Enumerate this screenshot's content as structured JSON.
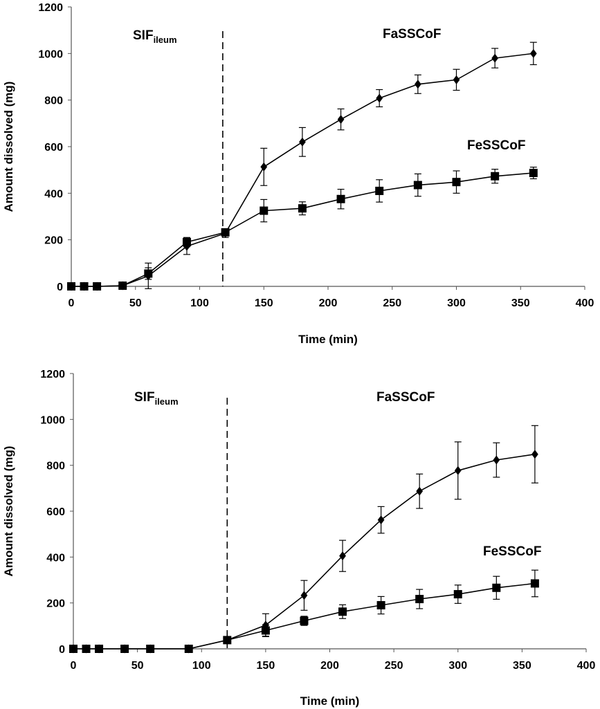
{
  "chart_data": [
    {
      "type": "line",
      "xlabel": "Time (min)",
      "ylabel": "Amount dissolved (mg)",
      "xlim": [
        0,
        400
      ],
      "ylim": [
        0,
        1200
      ],
      "xticks": [
        "0",
        "50",
        "100",
        "150",
        "200",
        "250",
        "300",
        "350",
        "400"
      ],
      "yticks": [
        "0",
        "200",
        "400",
        "600",
        "800",
        "1000",
        "1200"
      ],
      "grid": false,
      "legend": "none",
      "divider_x": 118,
      "annotations": {
        "left_main": "SIF",
        "left_sub": "ileum",
        "right": "FaSSCoF",
        "series_label": "FeSSCoF"
      },
      "series": [
        {
          "marker": "diamond",
          "x": [
            0,
            10,
            20,
            40,
            60,
            90,
            120,
            150,
            180,
            210,
            240,
            270,
            300,
            330,
            360
          ],
          "y": [
            0,
            0,
            0,
            3,
            45,
            172,
            228,
            513,
            620,
            717,
            808,
            868,
            887,
            980,
            1000
          ],
          "err": [
            0,
            0,
            0,
            2,
            55,
            35,
            18,
            80,
            62,
            45,
            37,
            40,
            45,
            42,
            48
          ]
        },
        {
          "marker": "square",
          "x": [
            0,
            10,
            20,
            40,
            60,
            90,
            120,
            150,
            180,
            210,
            240,
            270,
            300,
            330,
            360
          ],
          "y": [
            0,
            0,
            0,
            3,
            55,
            190,
            232,
            325,
            335,
            375,
            410,
            435,
            448,
            473,
            487
          ],
          "err": [
            0,
            0,
            0,
            2,
            25,
            20,
            15,
            48,
            28,
            42,
            48,
            48,
            48,
            30,
            25
          ]
        }
      ]
    },
    {
      "type": "line",
      "xlabel": "Time (min)",
      "ylabel": "Amount dissolved (mg)",
      "xlim": [
        0,
        400
      ],
      "ylim": [
        0,
        1200
      ],
      "xticks": [
        "0",
        "50",
        "100",
        "150",
        "200",
        "250",
        "300",
        "350",
        "400"
      ],
      "yticks": [
        "0",
        "200",
        "400",
        "600",
        "800",
        "1000",
        "1200"
      ],
      "grid": false,
      "legend": "none",
      "divider_x": 120,
      "annotations": {
        "left_main": "SIF",
        "left_sub": "ileum",
        "right": "FaSSCoF",
        "series_label": "FeSSCoF"
      },
      "series": [
        {
          "marker": "diamond",
          "x": [
            0,
            10,
            20,
            40,
            60,
            90,
            120,
            150,
            180,
            210,
            240,
            270,
            300,
            330,
            360
          ],
          "y": [
            0,
            0,
            0,
            0,
            0,
            0,
            38,
            103,
            233,
            405,
            562,
            687,
            777,
            823,
            848
          ],
          "err": [
            0,
            0,
            0,
            0,
            0,
            0,
            10,
            50,
            65,
            68,
            58,
            75,
            125,
            75,
            125
          ]
        },
        {
          "marker": "square",
          "x": [
            0,
            10,
            20,
            40,
            60,
            90,
            120,
            150,
            180,
            210,
            240,
            270,
            300,
            330,
            360
          ],
          "y": [
            0,
            0,
            0,
            0,
            0,
            0,
            38,
            80,
            122,
            162,
            190,
            217,
            238,
            266,
            285
          ],
          "err": [
            0,
            0,
            0,
            0,
            0,
            0,
            10,
            25,
            20,
            30,
            38,
            42,
            40,
            50,
            58
          ]
        }
      ]
    }
  ]
}
